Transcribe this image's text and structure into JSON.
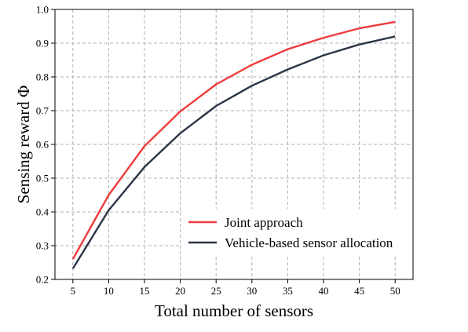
{
  "chart_data": {
    "type": "line",
    "xlabel": "Total number of sensors",
    "ylabel": "Sensing reward Φ",
    "x": [
      5,
      10,
      15,
      20,
      25,
      30,
      35,
      40,
      45,
      50
    ],
    "xlim": [
      2.5,
      52.5
    ],
    "ylim": [
      0.2,
      1.0
    ],
    "xticks": [
      5,
      10,
      15,
      20,
      25,
      30,
      35,
      40,
      45,
      50
    ],
    "yticks": [
      0.2,
      0.3,
      0.4,
      0.5,
      0.6,
      0.7,
      0.8,
      0.9,
      1.0
    ],
    "grid": true,
    "legend_position": "lower-right",
    "series": [
      {
        "name": "Joint approach",
        "color": "#ef3b3b",
        "values": [
          0.26,
          0.45,
          0.595,
          0.698,
          0.778,
          0.836,
          0.882,
          0.916,
          0.944,
          0.963
        ]
      },
      {
        "name": "Vehicle-based sensor allocation",
        "color": "#2b3547",
        "values": [
          0.232,
          0.405,
          0.533,
          0.633,
          0.714,
          0.774,
          0.822,
          0.864,
          0.896,
          0.92
        ]
      }
    ]
  }
}
